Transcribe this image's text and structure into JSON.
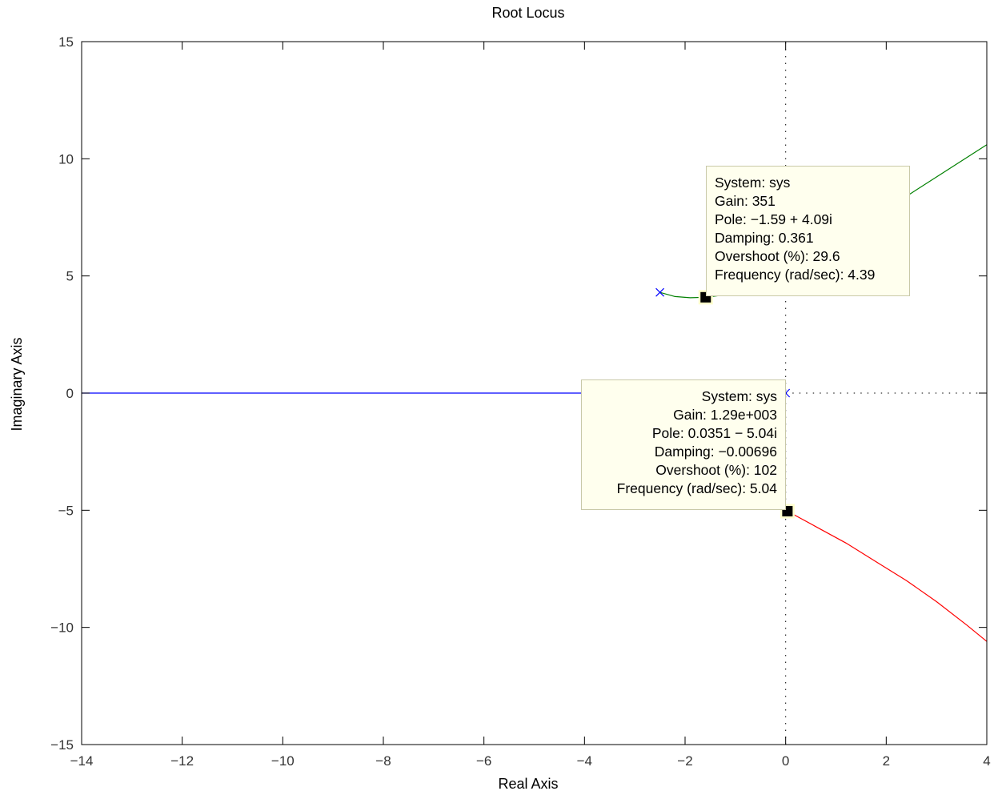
{
  "chart_data": {
    "type": "line",
    "title": "Root Locus",
    "xlabel": "Real Axis",
    "ylabel": "Imaginary Axis",
    "xlim": [
      -14,
      4
    ],
    "ylim": [
      -15,
      15
    ],
    "grid": false,
    "xticks": [
      -14,
      -12,
      -10,
      -8,
      -6,
      -4,
      -2,
      0,
      2,
      4
    ],
    "yticks": [
      -15,
      -10,
      -5,
      0,
      5,
      10,
      15
    ],
    "xtick_labels": [
      "−14",
      "−12",
      "−10",
      "−8",
      "−6",
      "−4",
      "−2",
      "0",
      "2",
      "4"
    ],
    "ytick_labels": [
      "−15",
      "−10",
      "−5",
      "0",
      "5",
      "10",
      "15"
    ],
    "series": [
      {
        "color": "#0000ff",
        "style": "solid",
        "x": [
          -14,
          -3.9
        ],
        "y": [
          0,
          0
        ]
      },
      {
        "color": "#008000",
        "style": "solid",
        "x": [
          -2.5,
          -2.2,
          -1.9,
          -1.59,
          -1.2,
          -0.6,
          0.0,
          0.8,
          1.6,
          2.4,
          3.2,
          4.0
        ],
        "y": [
          4.3,
          4.12,
          4.07,
          4.09,
          4.2,
          4.6,
          5.2,
          6.2,
          7.3,
          8.4,
          9.5,
          10.6
        ]
      },
      {
        "color": "#ff0000",
        "style": "solid",
        "x": [
          0.0351,
          0.6,
          1.2,
          1.8,
          2.4,
          3.0,
          3.6,
          4.0
        ],
        "y": [
          -5.04,
          -5.7,
          -6.4,
          -7.2,
          -8.0,
          -8.9,
          -9.9,
          -10.6
        ]
      }
    ],
    "asymptote_lines": [
      {
        "color": "#000000",
        "style": "dotted",
        "x": [
          0,
          0
        ],
        "y": [
          -15,
          15
        ]
      },
      {
        "color": "#000000",
        "style": "dotted",
        "x": [
          0,
          4
        ],
        "y": [
          0,
          0
        ]
      }
    ],
    "poles": [
      {
        "x": -2.5,
        "y": 4.3
      },
      {
        "x": 0,
        "y": 0
      }
    ],
    "datatips": [
      {
        "x": -1.59,
        "y": 4.09,
        "lines": [
          "System: sys",
          "Gain: 351",
          "Pole: −1.59 + 4.09i",
          "Damping: 0.361",
          "Overshoot (%): 29.6",
          "Frequency (rad/sec): 4.39"
        ]
      },
      {
        "x": 0.0351,
        "y": -5.04,
        "lines": [
          "System: sys",
          "Gain: 1.29e+003",
          "Pole: 0.0351 − 5.04i",
          "Damping: −0.00696",
          "Overshoot (%): 102",
          "Frequency (rad/sec): 5.04"
        ]
      }
    ]
  }
}
